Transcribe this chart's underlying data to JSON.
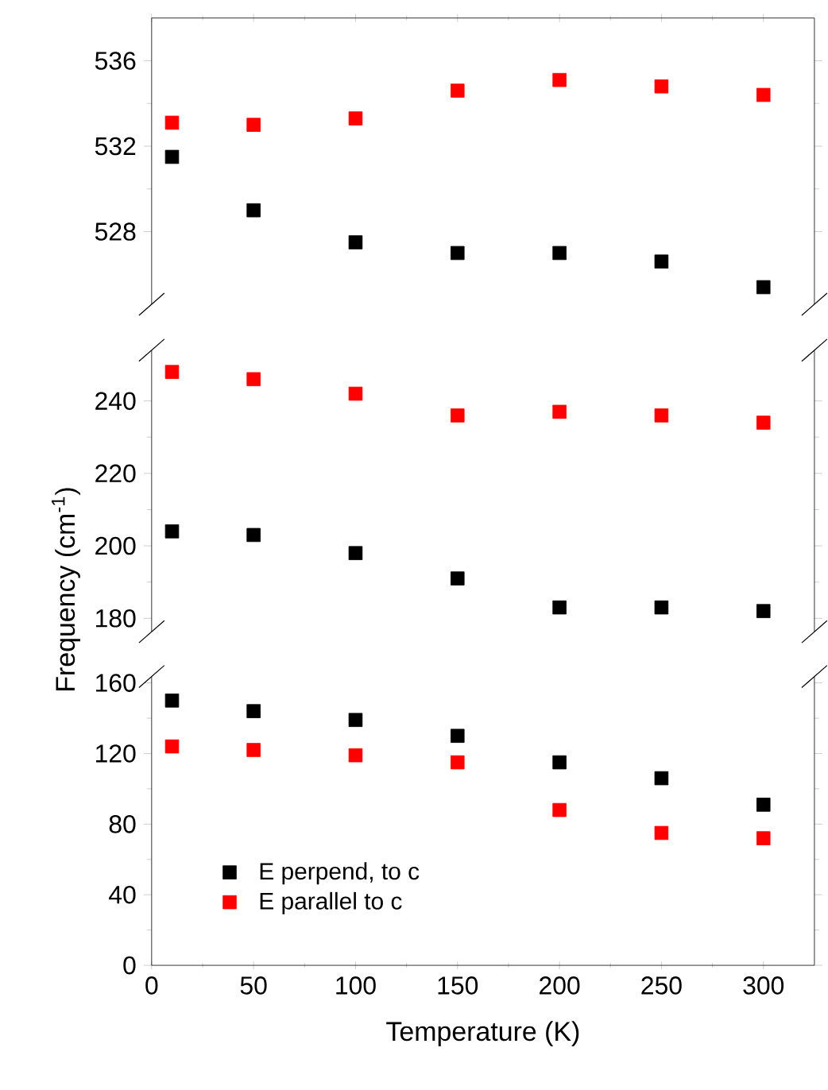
{
  "chart_data": [
    {
      "type": "scatter",
      "x": [
        10,
        50,
        100,
        150,
        200,
        250,
        300
      ],
      "xlim": [
        0,
        325
      ],
      "xticks": [
        0,
        50,
        100,
        150,
        200,
        250,
        300
      ],
      "ylim": [
        524.6,
        538
      ],
      "yticks": [
        528,
        532,
        536
      ],
      "tick_labels": "y",
      "marker": "square",
      "series": [
        {
          "color": "#000000",
          "values": [
            531.5,
            529.0,
            527.5,
            527.0,
            527.0,
            526.6,
            525.4
          ]
        },
        {
          "color": "#ff0000",
          "values": [
            533.1,
            533.0,
            533.3,
            534.6,
            535.1,
            534.8,
            534.4
          ]
        }
      ]
    },
    {
      "type": "scatter",
      "x": [
        10,
        50,
        100,
        150,
        200,
        250,
        300
      ],
      "xlim": [
        0,
        325
      ],
      "ylim": [
        176.3,
        254
      ],
      "yticks": [
        180,
        200,
        220,
        240
      ],
      "tick_labels": "y",
      "marker": "square",
      "ylabel": "Frequency (cm$^{-1}$)",
      "series": [
        {
          "color": "#000000",
          "values": [
            204,
            203,
            198,
            191,
            183,
            183,
            182
          ]
        },
        {
          "color": "#ff0000",
          "values": [
            248,
            246,
            242,
            236,
            237,
            236,
            234
          ]
        }
      ]
    },
    {
      "type": "scatter",
      "x": [
        10,
        50,
        100,
        150,
        200,
        250,
        300
      ],
      "xlim": [
        0,
        325
      ],
      "xticks": [
        0,
        50,
        100,
        150,
        200,
        250,
        300
      ],
      "ylim": [
        0,
        163.6
      ],
      "yticks": [
        0,
        40,
        80,
        120,
        160
      ],
      "marker": "square",
      "xlabel": "Temperature (K)",
      "legend": "bottom left",
      "series": [
        {
          "name": "E perpend, to c",
          "color": "#000000",
          "values": [
            150,
            144,
            139,
            130,
            115,
            106,
            91
          ]
        },
        {
          "name": "E parallel to c",
          "color": "#ff0000",
          "values": [
            124,
            122,
            119,
            115,
            88,
            75,
            72
          ]
        }
      ]
    }
  ]
}
